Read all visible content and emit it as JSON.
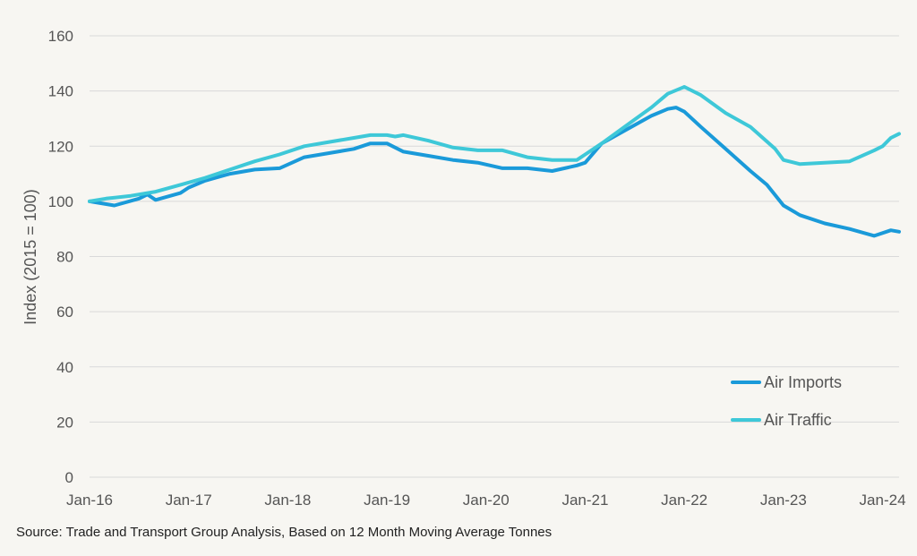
{
  "chart_data": {
    "type": "line",
    "ylabel": "Index (2015 = 100)",
    "xlabel": "",
    "title": "",
    "ylim": [
      0,
      160
    ],
    "y_ticks": [
      0,
      20,
      40,
      60,
      80,
      100,
      120,
      140,
      160
    ],
    "x_tick_labels": [
      "Jan-16",
      "Jan-17",
      "Jan-18",
      "Jan-19",
      "Jan-20",
      "Jan-21",
      "Jan-22",
      "Jan-23",
      "Jan-24"
    ],
    "x_range_months": [
      "2016-01",
      "2024-03"
    ],
    "grid": "horizontal",
    "legend_position": "bottom-right",
    "source": "Source: Trade and Transport Group Analysis, Based on 12 Month Moving Average Tonnes",
    "series": [
      {
        "name": "Air Imports",
        "color": "#1a9ad9",
        "points": [
          [
            "2016-01",
            100
          ],
          [
            "2016-04",
            98.5
          ],
          [
            "2016-07",
            101
          ],
          [
            "2016-08",
            102.5
          ],
          [
            "2016-09",
            100.5
          ],
          [
            "2016-12",
            103
          ],
          [
            "2017-01",
            105
          ],
          [
            "2017-03",
            107.5
          ],
          [
            "2017-06",
            110
          ],
          [
            "2017-09",
            111.5
          ],
          [
            "2017-12",
            112
          ],
          [
            "2018-03",
            116
          ],
          [
            "2018-06",
            117.5
          ],
          [
            "2018-09",
            119
          ],
          [
            "2018-11",
            121
          ],
          [
            "2019-01",
            121
          ],
          [
            "2019-03",
            118
          ],
          [
            "2019-06",
            116.5
          ],
          [
            "2019-09",
            115
          ],
          [
            "2019-12",
            114
          ],
          [
            "2020-03",
            112
          ],
          [
            "2020-06",
            112
          ],
          [
            "2020-09",
            111
          ],
          [
            "2020-12",
            113
          ],
          [
            "2021-01",
            114
          ],
          [
            "2021-03",
            121
          ],
          [
            "2021-06",
            126
          ],
          [
            "2021-09",
            131
          ],
          [
            "2021-11",
            133.5
          ],
          [
            "2021-12",
            134
          ],
          [
            "2022-01",
            132.5
          ],
          [
            "2022-03",
            127
          ],
          [
            "2022-06",
            119
          ],
          [
            "2022-09",
            111
          ],
          [
            "2022-11",
            106
          ],
          [
            "2023-01",
            98.5
          ],
          [
            "2023-03",
            95
          ],
          [
            "2023-06",
            92
          ],
          [
            "2023-09",
            90
          ],
          [
            "2023-12",
            87.5
          ],
          [
            "2024-02",
            89.5
          ],
          [
            "2024-03",
            89
          ]
        ]
      },
      {
        "name": "Air Traffic",
        "color": "#3ec8d8",
        "points": [
          [
            "2016-01",
            100
          ],
          [
            "2016-03",
            101
          ],
          [
            "2016-06",
            102
          ],
          [
            "2016-09",
            103.5
          ],
          [
            "2016-12",
            106
          ],
          [
            "2017-03",
            108.5
          ],
          [
            "2017-06",
            111.5
          ],
          [
            "2017-09",
            114.5
          ],
          [
            "2017-12",
            117
          ],
          [
            "2018-03",
            120
          ],
          [
            "2018-06",
            121.5
          ],
          [
            "2018-09",
            123
          ],
          [
            "2018-11",
            124
          ],
          [
            "2019-01",
            124
          ],
          [
            "2019-02",
            123.5
          ],
          [
            "2019-03",
            124
          ],
          [
            "2019-06",
            122
          ],
          [
            "2019-09",
            119.5
          ],
          [
            "2019-12",
            118.5
          ],
          [
            "2020-03",
            118.5
          ],
          [
            "2020-06",
            116
          ],
          [
            "2020-09",
            115
          ],
          [
            "2020-12",
            115
          ],
          [
            "2021-01",
            117
          ],
          [
            "2021-03",
            121
          ],
          [
            "2021-06",
            127.5
          ],
          [
            "2021-09",
            134
          ],
          [
            "2021-11",
            139
          ],
          [
            "2022-01",
            141.5
          ],
          [
            "2022-03",
            138.5
          ],
          [
            "2022-06",
            132
          ],
          [
            "2022-09",
            127
          ],
          [
            "2022-12",
            119
          ],
          [
            "2023-01",
            115
          ],
          [
            "2023-03",
            113.5
          ],
          [
            "2023-06",
            114
          ],
          [
            "2023-09",
            114.5
          ],
          [
            "2023-12",
            118.5
          ],
          [
            "2024-01",
            120
          ],
          [
            "2024-02",
            123
          ],
          [
            "2024-03",
            124.5
          ]
        ]
      }
    ]
  }
}
